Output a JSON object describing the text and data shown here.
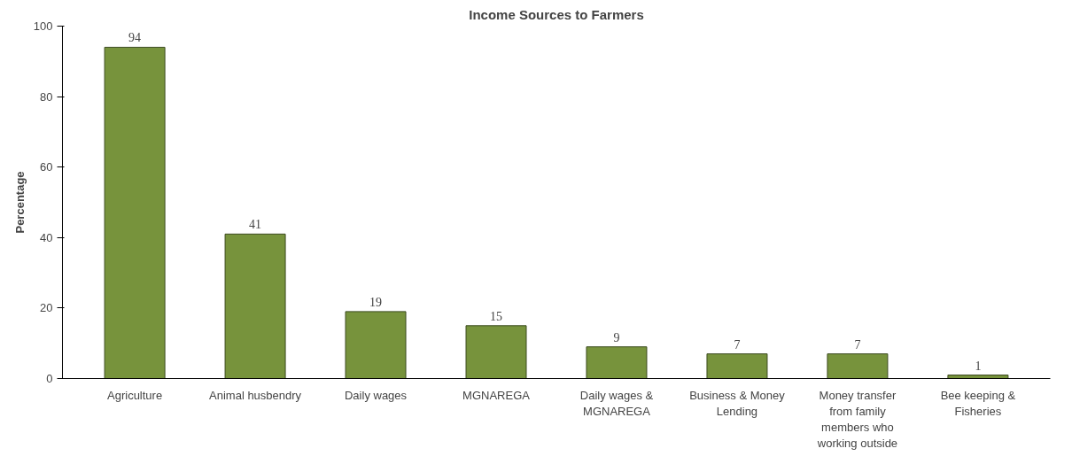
{
  "chart_data": {
    "type": "bar",
    "title": "Income Sources to Farmers",
    "ylabel": "Percentage",
    "categories": [
      "Agriculture",
      "Animal husbendry",
      "Daily wages",
      "MGNAREGA",
      "Daily wages & MGNAREGA",
      "Business & Money Lending",
      "Money transfer from family members who working outside",
      "Bee keeping & Fisheries"
    ],
    "values": [
      94,
      41,
      19,
      15,
      9,
      7,
      7,
      1
    ],
    "color": "#77933c",
    "ylim": [
      0,
      100
    ],
    "yticks": [
      0,
      20,
      40,
      60,
      80,
      100
    ],
    "data_labels": true,
    "grid": false
  }
}
